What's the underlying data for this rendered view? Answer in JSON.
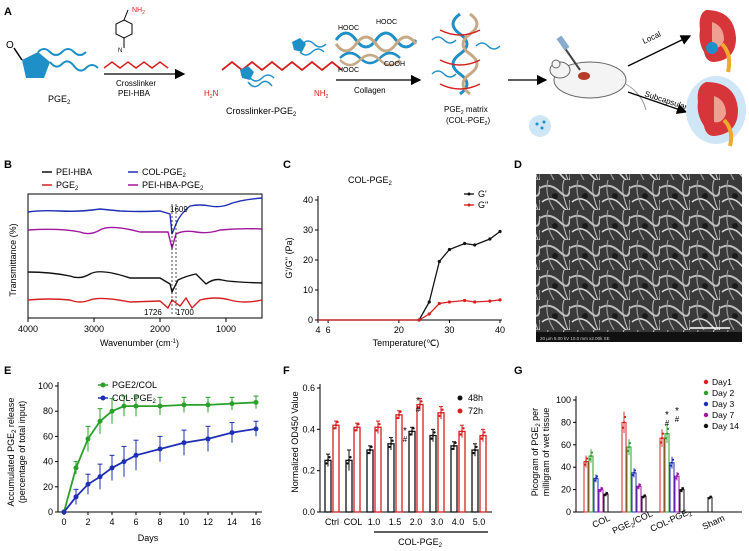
{
  "panel_a": {
    "letter": "A",
    "pge2_label": "PGE",
    "pge2_sub": "2",
    "nh2_top": "NH",
    "nh2_sub": "2",
    "arrow1_label1": "Crosslinker",
    "arrow1_label2": "PEI-HBA",
    "h2n": "H",
    "h2n_rest": "N",
    "nh2_right": "NH",
    "crosslinker_label": "Crosslinker-PGE",
    "crosslinker_sub": "2",
    "hooc1": "HOOC",
    "hooc2": "HOOC",
    "hooc3": "HOOC",
    "cooh": "COOH",
    "arrow2_label": "Collagen",
    "matrix_label1": "PGE",
    "matrix_label1_sub": "2",
    "matrix_label1_rest": " matrix",
    "matrix_label2": "(COL-PGE",
    "matrix_label2_sub": "2",
    "matrix_label2_rest": ")",
    "local_label": "Local",
    "subcapsular_label": "Subcapsular",
    "o_label": "O"
  },
  "panel_b": {
    "letter": "B",
    "legend": [
      {
        "label": "PEI-HBA",
        "color": "#111111"
      },
      {
        "label": "COL-PGE",
        "sub": "2",
        "color": "#1f2fb3"
      },
      {
        "label": "PGE",
        "sub": "2",
        "color": "#d62020"
      },
      {
        "label": "PEI-HBA-PGE",
        "sub": "2",
        "color": "#a0169c"
      }
    ],
    "ylabel": "Transmittance (%)",
    "xlabel": "Wavenumber (cm",
    "xlabel_sup": "-1",
    "xlabel_end": ")",
    "xticks": [
      "4000",
      "3000",
      "2000",
      "1000"
    ],
    "annot_1609": "1609",
    "annot_1726": "1726",
    "annot_1700": "1700"
  },
  "panel_c": {
    "letter": "C",
    "title": "COL-PGE",
    "title_sub": "2",
    "ylabel": "G'/G'' (Pa)",
    "xlabel": "Temperature(℃)",
    "legend_g1": "G'",
    "legend_g2": "G''",
    "yticks": [
      "0",
      "10",
      "20",
      "30",
      "40"
    ],
    "xticks": [
      "4",
      "6",
      "20",
      "30",
      "40"
    ]
  },
  "panel_d": {
    "letter": "D",
    "sem_info": "20 µm   5.00 kV   10.0 mm   x2.00k SE"
  },
  "chart_data": [
    {
      "id": "C",
      "type": "line",
      "title": "COL-PGE2",
      "xlabel": "Temperature(℃)",
      "ylabel": "G'/G'' (Pa)",
      "xlim": [
        4,
        40
      ],
      "ylim": [
        0,
        40
      ],
      "x": [
        4,
        6,
        10,
        14,
        18,
        20,
        24,
        26,
        28,
        30,
        33,
        35,
        38,
        40
      ],
      "series": [
        {
          "name": "G'",
          "color": "#111111",
          "values": [
            0,
            0,
            0,
            0,
            0,
            0,
            0,
            6,
            19.5,
            23.5,
            25.5,
            25,
            27,
            29.5
          ]
        },
        {
          "name": "G''",
          "color": "#d62020",
          "values": [
            0,
            0,
            0,
            0,
            0,
            0,
            0,
            2,
            5.5,
            6,
            6.5,
            6,
            6.3,
            6.7
          ]
        }
      ]
    },
    {
      "id": "E",
      "type": "line",
      "xlabel": "Days",
      "ylabel": "Accumulated PGE2 release (percentage of total input)",
      "xlim": [
        0,
        16
      ],
      "ylim": [
        0,
        100
      ],
      "x": [
        0,
        1,
        2,
        3,
        4,
        5,
        6,
        8,
        10,
        12,
        14,
        16
      ],
      "series": [
        {
          "name": "PGE2/COL",
          "color": "#2aa02a",
          "values": [
            0,
            35,
            58,
            72,
            80,
            84,
            84,
            84,
            85,
            85,
            86,
            87
          ],
          "err": [
            0,
            5,
            10,
            10,
            10,
            8,
            8,
            7,
            6,
            6,
            5,
            5
          ]
        },
        {
          "name": "COL-PGE2",
          "color": "#1f2fb3",
          "values": [
            0,
            12,
            22,
            28,
            35,
            40,
            45,
            50,
            55,
            58,
            63,
            66
          ],
          "err": [
            0,
            6,
            8,
            10,
            10,
            12,
            12,
            10,
            10,
            10,
            8,
            6
          ]
        }
      ]
    },
    {
      "id": "F",
      "type": "bar",
      "ylabel": "Normalized OD450 Value",
      "ylim": [
        0,
        0.6
      ],
      "categories": [
        "Ctrl",
        "COL",
        "1.0",
        "1.5",
        "2.0",
        "3.0",
        "4.0",
        "5.0"
      ],
      "group_label": "COL-PGE2",
      "series": [
        {
          "name": "48h",
          "color": "#111111",
          "values": [
            0.25,
            0.25,
            0.3,
            0.33,
            0.39,
            0.37,
            0.32,
            0.3
          ],
          "err": [
            0.03,
            0.05,
            0.02,
            0.03,
            0.02,
            0.03,
            0.02,
            0.03
          ]
        },
        {
          "name": "72h",
          "color": "#d62020",
          "values": [
            0.42,
            0.41,
            0.41,
            0.47,
            0.52,
            0.48,
            0.39,
            0.37
          ],
          "err": [
            0.02,
            0.02,
            0.03,
            0.02,
            0.03,
            0.03,
            0.03,
            0.03
          ]
        }
      ],
      "annotations": [
        "*",
        "#",
        "*",
        "#"
      ]
    },
    {
      "id": "G",
      "type": "bar",
      "ylabel": "Picogram of PGE2 per milligram of wet tissue",
      "ylim": [
        0,
        100
      ],
      "categories": [
        "COL",
        "PGE2/COL",
        "COL-PGE2",
        "Sham"
      ],
      "series": [
        {
          "name": "Day1",
          "color": "#d62020",
          "values": [
            45,
            80,
            66,
            0
          ]
        },
        {
          "name": "Day 2",
          "color": "#2aa02a",
          "values": [
            50,
            58,
            70,
            0
          ]
        },
        {
          "name": "Day 3",
          "color": "#1f2fb3",
          "values": [
            30,
            35,
            44,
            0
          ]
        },
        {
          "name": "Day 7",
          "color": "#a0169c",
          "values": [
            20,
            23,
            32,
            0
          ]
        },
        {
          "name": "Day 14",
          "color": "#111111",
          "values": [
            16,
            14,
            20,
            13
          ]
        }
      ],
      "annotations": [
        "*",
        "#",
        "*",
        "#"
      ]
    }
  ],
  "panel_e": {
    "letter": "E",
    "legend1": "PGE2/COL",
    "legend2": "COL-PGE",
    "legend2_sub": "2",
    "ylabel1": "Accumulated PGE",
    "ylabel1_sub": "2",
    "ylabel1_rest": " release",
    "ylabel2": "(percentage of total input)",
    "xlabel": "Days",
    "yticks": [
      "0",
      "20",
      "40",
      "60",
      "80",
      "100"
    ],
    "xticks": [
      "0",
      "2",
      "4",
      "6",
      "8",
      "10",
      "12",
      "14",
      "16"
    ]
  },
  "panel_f": {
    "letter": "F",
    "ylabel": "Normalized OD450 Value",
    "yticks": [
      "0.0",
      "0.2",
      "0.4",
      "0.6"
    ],
    "legend1": "48h",
    "legend2": "72h",
    "group_label": "COL-PGE",
    "group_sub": "2",
    "star": "*",
    "hash": "#"
  },
  "panel_g": {
    "letter": "G",
    "ylabel1": "Picogram of PGE",
    "ylabel1_sub": "2",
    "ylabel1_rest": " per",
    "ylabel2": "milligram of wet tissue",
    "yticks": [
      "0",
      "20",
      "40",
      "60",
      "80",
      "100"
    ],
    "xlab_col": "COL",
    "xlab_pge": "PGE",
    "xlab_pge_sub": "2",
    "xlab_pge_rest": "/COL",
    "xlab_colpge": "COL-PGE",
    "xlab_colpge_sub": "2",
    "xlab_sham": "Sham",
    "legend": [
      "Day1",
      "Day 2",
      "Day 3",
      "Day 7",
      "Day 14"
    ],
    "star": "*",
    "hash": "#"
  }
}
